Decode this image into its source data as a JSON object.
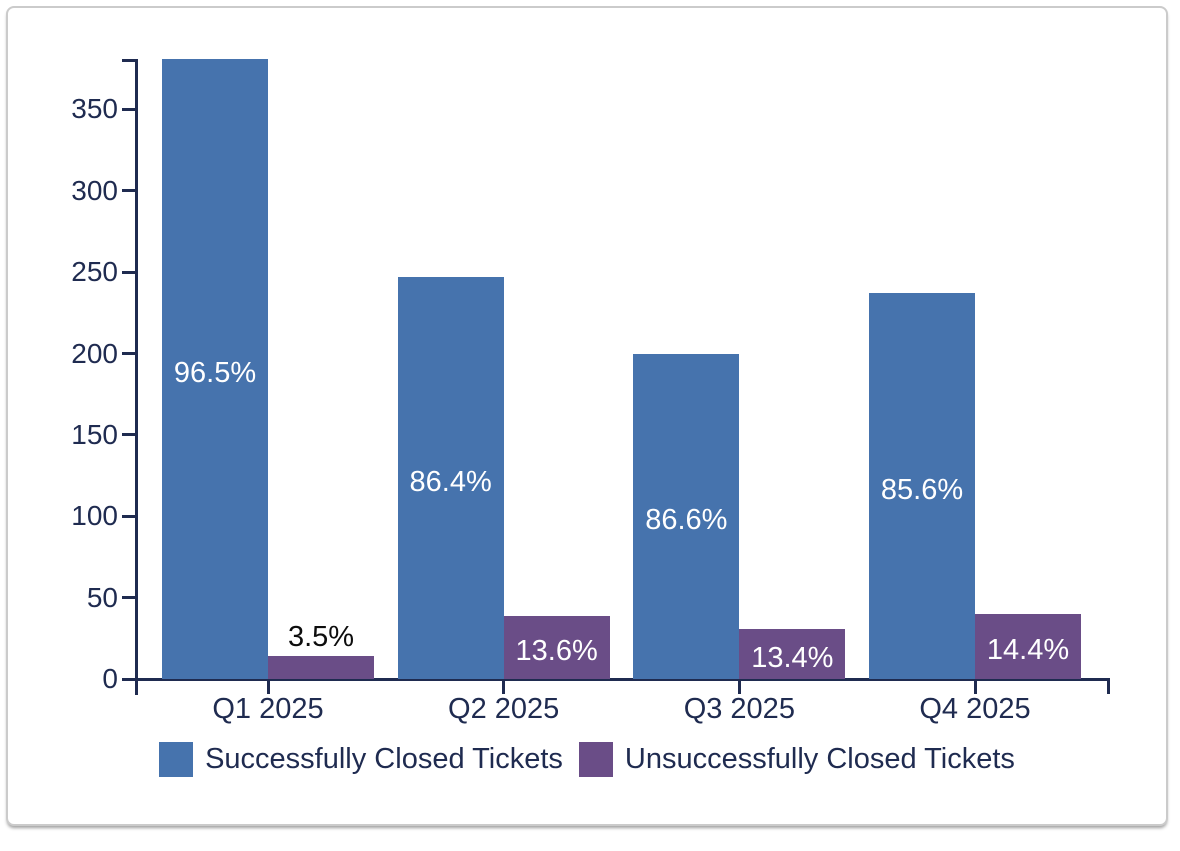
{
  "chart_data": {
    "type": "bar",
    "title": "",
    "xlabel": "",
    "ylabel": "",
    "categories": [
      "Q1 2025",
      "Q2 2025",
      "Q3 2025",
      "Q4 2025"
    ],
    "series": [
      {
        "name": "Successfully Closed Tickets",
        "color": "#4673ad",
        "values": [
          381,
          247,
          200,
          237
        ],
        "bar_labels": [
          "96.5%",
          "86.4%",
          "86.6%",
          "85.6%"
        ],
        "bar_label_color": "#ffffff"
      },
      {
        "name": "Unsuccessfully Closed Tickets",
        "color": "#6a4d87",
        "values": [
          14,
          39,
          31,
          40
        ],
        "bar_labels": [
          "3.5%",
          "13.6%",
          "13.4%",
          "14.4%"
        ],
        "bar_label_color": "#ffffff",
        "outside_label_color": "#0d0d0d"
      }
    ],
    "yticks": [
      0,
      50,
      100,
      150,
      200,
      250,
      300,
      350
    ],
    "ylim": [
      0,
      381
    ],
    "grid": false,
    "legend_position": "bottom",
    "axis_color": "#1f2b50"
  }
}
